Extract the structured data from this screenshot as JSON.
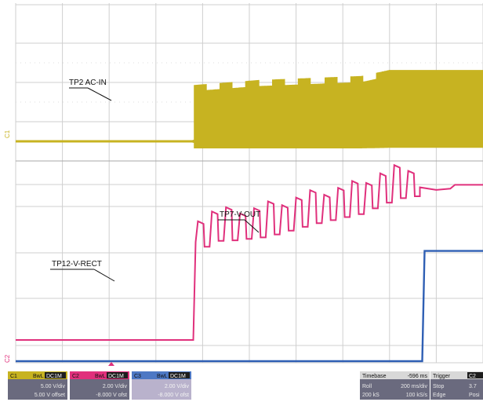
{
  "chart_data": {
    "type": "line",
    "title": "",
    "xlabel": "",
    "ylabel": "",
    "grid": true,
    "xlim": [
      0,
      1
    ],
    "series": [
      {
        "name": "TP2 AC-IN",
        "channel": "C1",
        "color": "#c7b321",
        "baseline": 0,
        "env_x": [
          0.0,
          0.38,
          0.38,
          0.52,
          0.74,
          0.8,
          1.0
        ],
        "env_top": [
          0.3,
          0.3,
          11.2,
          12.2,
          13.0,
          14.2,
          14.2
        ],
        "env_bottom": [
          -0.3,
          -0.3,
          -1.4,
          -1.4,
          -1.4,
          -1.3,
          -1.3
        ]
      },
      {
        "name": "TP12-V-RECT",
        "channel": "C2",
        "color": "#e0307c",
        "x": [
          0.0,
          0.38,
          0.385,
          0.4,
          0.44,
          0.52,
          0.62,
          0.72,
          0.8,
          0.86,
          0.88,
          1.0
        ],
        "y": [
          0.8,
          0.8,
          8.5,
          9.2,
          9.2,
          9.5,
          10.5,
          11.3,
          12.5,
          12.8,
          12.6,
          12.8
        ]
      },
      {
        "name": "TP7-V-OUT",
        "channel": "C3",
        "color": "#2f5fb4",
        "x": [
          0.0,
          0.87,
          0.875,
          1.0
        ],
        "y": [
          0.0,
          0.0,
          12.0,
          12.0
        ]
      }
    ]
  },
  "annotations": {
    "ac_in": "TP2 AC-IN",
    "v_rect": "TP12-V-RECT",
    "v_out": "TP7-V-OUT"
  },
  "markers": {
    "c1": "C1",
    "c2": "C2"
  },
  "colors": {
    "c1": "#c7b321",
    "c2": "#e0307c",
    "c3": "#2f5fb4",
    "grid": "#cfcfcf"
  },
  "channels": [
    {
      "label": "C1",
      "mode1": "BwL",
      "mode2": "DC1M",
      "vdiv": "5.00 V/div",
      "offset": "5.00 V offset"
    },
    {
      "label": "C2",
      "mode1": "BwL",
      "mode2": "DC1M",
      "vdiv": "2.00 V/div",
      "offset": "-8.000 V ofst"
    },
    {
      "label": "C3",
      "mode1": "BwL",
      "mode2": "DC1M",
      "vdiv": "2.00 V/div",
      "offset": "-8.000 V ofst"
    }
  ],
  "timebase": {
    "label": "Timebase",
    "value": "-596 ms",
    "r1a": "Roll",
    "r1b": "200 ms/div",
    "r2a": "200 kS",
    "r2b": "100 kS/s"
  },
  "trigger": {
    "label": "Trigger",
    "badge": "C2",
    "r1a": "Stop",
    "r1b": "3.7",
    "r2a": "Edge",
    "r2b": "Posi"
  }
}
